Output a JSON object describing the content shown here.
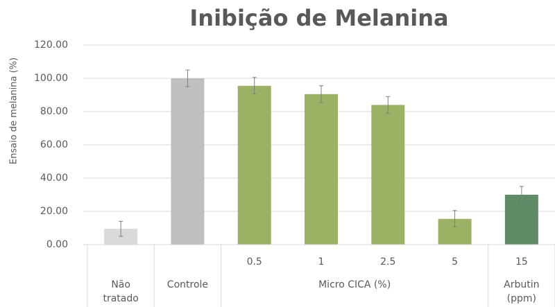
{
  "chart_data": {
    "type": "bar",
    "title": "Inibição de Melanina",
    "y_label": "Ensaio de melanina (%)",
    "categories": [
      null,
      null,
      "0.5",
      "1",
      "2.5",
      "5",
      "15"
    ],
    "groups": [
      {
        "name": "Não tratado",
        "count": 1
      },
      {
        "name": "Controle",
        "count": 1
      },
      {
        "name": "Micro CICA (%)",
        "count": 4
      },
      {
        "name": "Arbutin (ppm)",
        "count": 1
      }
    ],
    "values": [
      9.5,
      100,
      95.5,
      90.5,
      84,
      15.5,
      30
    ],
    "errors": [
      4.5,
      5,
      5,
      5,
      5,
      5,
      5
    ],
    "colors": [
      "#d9d9d9",
      "#bfbfbf",
      "#9bb265",
      "#9bb265",
      "#9bb265",
      "#9bb265",
      "#5e8c67"
    ],
    "ylim": [
      0,
      120
    ],
    "yticks": [
      {
        "value": 0,
        "label": "0.00"
      },
      {
        "value": 20,
        "label": "20.00"
      },
      {
        "value": 40,
        "label": "40.00"
      },
      {
        "value": 60,
        "label": "60.00"
      },
      {
        "value": 80,
        "label": "80.00"
      },
      {
        "value": 100,
        "label": "100.00"
      },
      {
        "value": 120,
        "label": "120.00"
      }
    ],
    "grid": true
  }
}
